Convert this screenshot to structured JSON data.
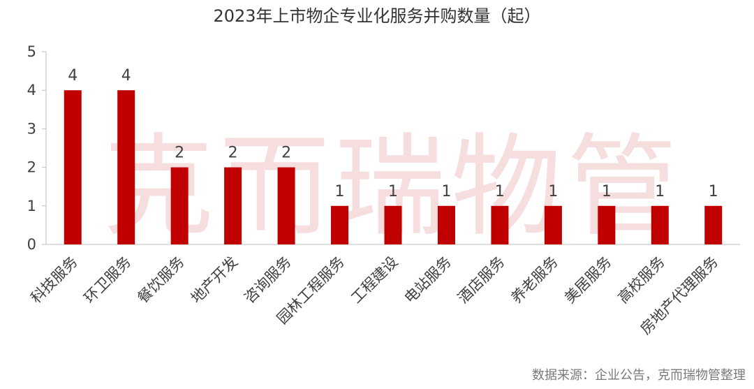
{
  "chart_data": {
    "type": "bar",
    "title": "2023年上市物企专业化服务并购数量（起）",
    "xlabel": "",
    "ylabel": "",
    "ylim": [
      0,
      5
    ],
    "yticks": [
      0,
      1,
      2,
      3,
      4,
      5
    ],
    "grid": false,
    "categories": [
      "科技服务",
      "环卫服务",
      "餐饮服务",
      "地产开发",
      "咨询服务",
      "园林工程服务",
      "工程建设",
      "电站服务",
      "酒店服务",
      "养老服务",
      "美居服务",
      "高校服务",
      "房地产代理服务"
    ],
    "values": [
      4,
      4,
      2,
      2,
      2,
      1,
      1,
      1,
      1,
      1,
      1,
      1,
      1
    ],
    "data_labels": [
      "4",
      "4",
      "2",
      "2",
      "2",
      "1",
      "1",
      "1",
      "1",
      "1",
      "1",
      "1",
      "1"
    ],
    "bar_color": "#c00000"
  },
  "watermark": "克而瑞物管",
  "source": "数据来源：企业公告，克而瑞物管整理",
  "colors": {
    "bar": "#c00000",
    "title": "#333333",
    "axis_text": "#404040",
    "axis_line": "#bfbfbf",
    "watermark": "#f6dede"
  }
}
